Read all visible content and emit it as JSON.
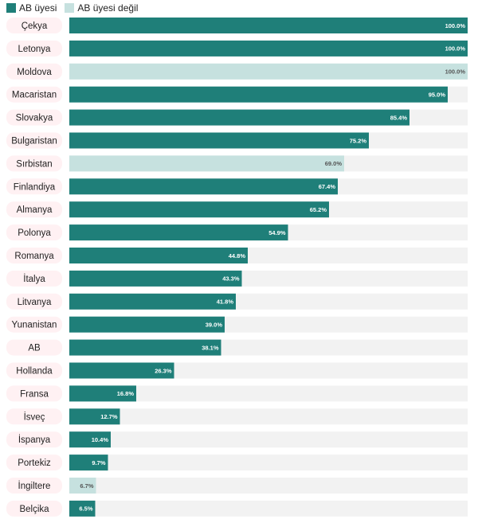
{
  "legend": {
    "member_label": "AB üyesi",
    "nonmember_label": "AB üyesi değil"
  },
  "colors": {
    "member": "#1f7f79",
    "nonmember": "#c6e1df",
    "track": "#f2f2f2",
    "label_bg": "#fff1f3",
    "member_text": "#ffffff",
    "nonmember_text": "#555555"
  },
  "chart_data": {
    "type": "bar",
    "orientation": "horizontal",
    "xlim": [
      0,
      100
    ],
    "grid": false,
    "legend_position": "top-left",
    "series": [
      {
        "name": "AB üyesi"
      },
      {
        "name": "AB üyesi değil"
      }
    ],
    "categories": [
      "Çekya",
      "Letonya",
      "Moldova",
      "Macaristan",
      "Slovakya",
      "Bulgaristan",
      "Sırbistan",
      "Finlandiya",
      "Almanya",
      "Polonya",
      "Romanya",
      "İtalya",
      "Litvanya",
      "Yunanistan",
      "AB",
      "Hollanda",
      "Fransa",
      "İsveç",
      "İspanya",
      "Portekiz",
      "İngiltere",
      "Belçika"
    ],
    "values": [
      100.0,
      100.0,
      100.0,
      95.0,
      85.4,
      75.2,
      69.0,
      67.4,
      65.2,
      54.9,
      44.8,
      43.3,
      41.8,
      39.0,
      38.1,
      26.3,
      16.8,
      12.7,
      10.4,
      9.7,
      6.7,
      6.5
    ],
    "value_labels": [
      "100.0%",
      "100.0%",
      "100.0%",
      "95.0%",
      "85.4%",
      "75.2%",
      "69.0%",
      "67.4%",
      "65.2%",
      "54.9%",
      "44.8%",
      "43.3%",
      "41.8%",
      "39.0%",
      "38.1%",
      "26.3%",
      "16.8%",
      "12.7%",
      "10.4%",
      "9.7%",
      "6.7%",
      "6.5%"
    ],
    "group": [
      "AB üyesi",
      "AB üyesi",
      "AB üyesi değil",
      "AB üyesi",
      "AB üyesi",
      "AB üyesi",
      "AB üyesi değil",
      "AB üyesi",
      "AB üyesi",
      "AB üyesi",
      "AB üyesi",
      "AB üyesi",
      "AB üyesi",
      "AB üyesi",
      "AB üyesi",
      "AB üyesi",
      "AB üyesi",
      "AB üyesi",
      "AB üyesi",
      "AB üyesi",
      "AB üyesi değil",
      "AB üyesi"
    ]
  }
}
